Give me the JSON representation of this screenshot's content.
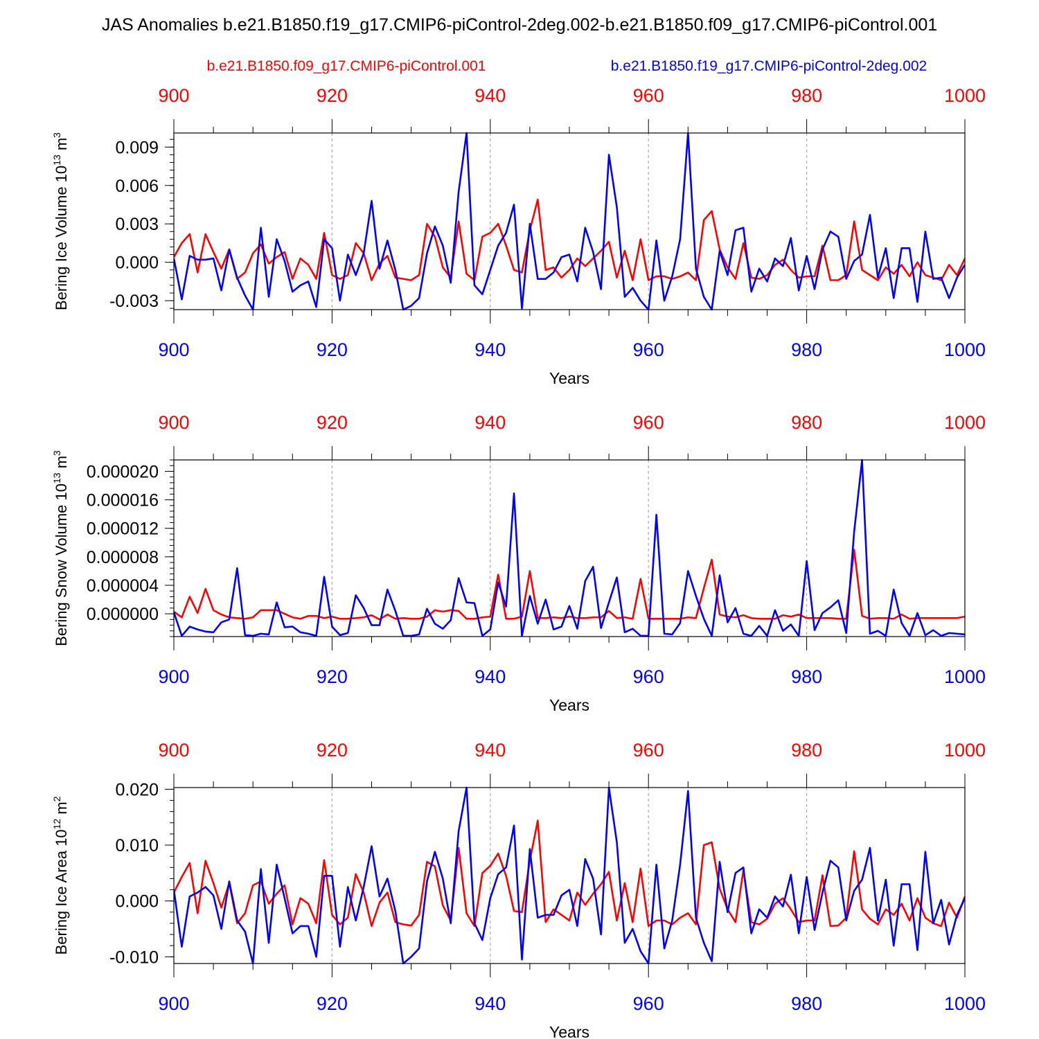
{
  "title": "JAS Anomalies b.e21.B1850.f19_g17.CMIP6-piControl-2deg.002-b.e21.B1850.f09_g17.CMIP6-piControl.001",
  "legend": {
    "red_label": "b.e21.B1850.f09_g17.CMIP6-piControl.001",
    "blue_label": "b.e21.B1850.f19_g17.CMIP6-piControl-2deg.002"
  },
  "colors": {
    "red": "#ff0000",
    "blue": "#0000ff",
    "axis": "#000000",
    "grid": "#999999"
  },
  "chart_data": [
    {
      "type": "line",
      "title": "",
      "xlabel": "Years",
      "ylabel": "Bering Ice Volume",
      "ylabel_unit": "10",
      "ylabel_exp": "13",
      "ylabel_unit2": "m",
      "ylabel_exp2": "3",
      "xlim": [
        900,
        1000
      ],
      "ylim": [
        -0.0037,
        0.0101
      ],
      "xticks": [
        900,
        920,
        940,
        960,
        980,
        1000
      ],
      "xtick_labels_top": [
        "900",
        "920",
        "940",
        "960",
        "980",
        "1000"
      ],
      "xtick_labels_bottom": [
        "900",
        "920",
        "940",
        "960",
        "980",
        "1000"
      ],
      "yticks": [
        -0.003,
        0,
        0.003,
        0.006,
        0.009
      ],
      "ytick_labels": [
        "-0.003",
        "0.000",
        "0.003",
        "0.006",
        "0.009"
      ],
      "grid_x": [
        920,
        940,
        960,
        980
      ],
      "series": [
        {
          "name": "b.e21.B1850.f09_g17.CMIP6-piControl.001",
          "color": "red",
          "x_start": 900,
          "values": [
            0.0004,
            0.0015,
            0.0022,
            -0.0008,
            0.0022,
            0.0008,
            -0.0005,
            0.001,
            -0.0013,
            -0.0008,
            0.0007,
            0.0014,
            -0.0001,
            0.0004,
            0.0008,
            -0.0013,
            0.0003,
            -0.0002,
            -0.0013,
            0.0023,
            -0.001,
            -0.0013,
            -0.001,
            0.0015,
            0.0007,
            -0.0014,
            -0.0001,
            0.0005,
            -0.0012,
            -0.0013,
            -0.0014,
            -0.001,
            0.003,
            0.002,
            -0.0004,
            -0.0012,
            0.0032,
            -0.0009,
            -0.0014,
            0.002,
            0.0023,
            0.003,
            0.0013,
            -0.0006,
            -0.0008,
            0.0025,
            0.0049,
            -0.0006,
            -0.0004,
            -0.0012,
            -0.0006,
            0.0003,
            -0.0003,
            0.0003,
            0.0009,
            0.0016,
            -0.0012,
            0.0009,
            -0.0014,
            0.0018,
            -0.0014,
            -0.0011,
            -0.0011,
            -0.0013,
            -0.0011,
            -0.0008,
            -0.0014,
            0.0033,
            0.004,
            0.001,
            -0.0004,
            -0.0013,
            0.0015,
            -0.0012,
            -0.0013,
            -0.001,
            -0.0002,
            0.0002,
            -0.0006,
            -0.0012,
            -0.0011,
            -0.0011,
            0.0013,
            -0.0014,
            -0.0014,
            -0.001,
            0.0032,
            -0.0006,
            -0.001,
            -0.0014,
            -0.0004,
            -0.0009,
            -0.0002,
            -0.0011,
            0.0,
            -0.001,
            -0.0012,
            -0.0014,
            -0.0002,
            -0.001,
            0.0003
          ]
        },
        {
          "name": "b.e21.B1850.f19_g17.CMIP6-piControl-2deg.002",
          "color": "blue",
          "x_start": 900,
          "values": [
            0.0003,
            -0.0029,
            0.0005,
            0.0002,
            0.0002,
            0.0003,
            -0.0022,
            0.001,
            -0.0012,
            -0.0026,
            -0.0037,
            0.0027,
            -0.0027,
            0.0018,
            0.0001,
            -0.0023,
            -0.0018,
            -0.0015,
            -0.0035,
            0.0018,
            0.0011,
            -0.003,
            0.0006,
            -0.001,
            0.0007,
            0.0048,
            -0.0005,
            0.0017,
            -0.0006,
            -0.0037,
            -0.0034,
            -0.0028,
            0.0007,
            0.0028,
            0.0013,
            -0.0016,
            0.0055,
            0.0101,
            -0.0018,
            -0.0025,
            -0.0006,
            0.0013,
            0.0023,
            0.0045,
            -0.0036,
            0.003,
            -0.0013,
            -0.0013,
            -0.0008,
            0.0004,
            0.0006,
            -0.0015,
            0.0027,
            0.0008,
            -0.0021,
            0.0084,
            0.0043,
            -0.0027,
            -0.002,
            -0.003,
            -0.0037,
            0.0017,
            -0.003,
            -0.0011,
            0.0018,
            0.0101,
            -0.0005,
            -0.0027,
            -0.0037,
            0.0009,
            -0.001,
            0.0025,
            0.0027,
            -0.0023,
            -0.0005,
            -0.0015,
            0.0003,
            -0.0003,
            0.0019,
            -0.0022,
            0.0005,
            -0.0021,
            0.001,
            0.0024,
            0.002,
            -0.0013,
            0.0001,
            0.0006,
            0.0037,
            -0.0012,
            0.0011,
            -0.0028,
            0.0011,
            0.0011,
            -0.0031,
            0.0024,
            -0.0013,
            -0.0012,
            -0.0028,
            -0.0012,
            -0.0002
          ]
        }
      ]
    },
    {
      "type": "line",
      "title": "",
      "xlabel": "Years",
      "ylabel": "Bering Snow Volume",
      "ylabel_unit": "10",
      "ylabel_exp": "13",
      "ylabel_unit2": "m",
      "ylabel_exp2": "3",
      "xlim": [
        900,
        1000
      ],
      "ylim": [
        -3.2e-06,
        2.16e-05
      ],
      "xticks": [
        900,
        920,
        940,
        960,
        980,
        1000
      ],
      "xtick_labels_top": [
        "900",
        "920",
        "940",
        "960",
        "980",
        "1000"
      ],
      "xtick_labels_bottom": [
        "900",
        "920",
        "940",
        "960",
        "980",
        "1000"
      ],
      "yticks": [
        0,
        4e-06,
        8e-06,
        1.2e-05,
        1.6e-05,
        2e-05
      ],
      "ytick_labels": [
        "0.000000",
        "0.000004",
        "0.000008",
        "0.000012",
        "0.000016",
        "0.000020"
      ],
      "grid_x": [
        920,
        940,
        960,
        980
      ],
      "series": [
        {
          "name": "b.e21.B1850.f09_g17.CMIP6-piControl.001",
          "color": "red",
          "x_start": 900,
          "values": [
            3e-07,
            -5e-07,
            2.4e-06,
            1e-07,
            3.5e-06,
            5e-07,
            -1e-07,
            -5e-07,
            -6e-07,
            -7e-07,
            -5e-07,
            5e-07,
            5e-07,
            5e-07,
            0.0,
            -5e-07,
            -7e-07,
            -3e-07,
            -3e-07,
            -6e-07,
            -4e-07,
            -7e-07,
            -7e-07,
            -6e-07,
            -5e-07,
            -2e-07,
            -8e-07,
            -1e-07,
            -7e-07,
            -6e-07,
            -7e-07,
            -7e-07,
            -4e-07,
            5e-07,
            3e-07,
            5e-07,
            4e-07,
            -7e-07,
            -7e-07,
            -5e-07,
            -4e-07,
            5.5e-06,
            -7e-07,
            -7e-07,
            -4e-07,
            6e-06,
            -6e-07,
            -6e-07,
            -5e-07,
            -6e-07,
            -4e-07,
            -6e-07,
            -6e-07,
            -5e-07,
            -5e-07,
            4e-07,
            -6e-07,
            -5e-07,
            -7e-07,
            4.9e-06,
            -7e-07,
            -7e-07,
            -7e-07,
            -7e-07,
            -7e-07,
            -5e-07,
            -6e-07,
            3.6e-06,
            7.6e-06,
            -1e-07,
            -4e-07,
            -5e-07,
            -2e-07,
            -6e-07,
            -7e-07,
            -7e-07,
            -7e-07,
            -2e-07,
            -4e-07,
            -1e-07,
            -6e-07,
            -6e-07,
            -6e-07,
            -6e-07,
            -7e-07,
            -7e-07,
            9e-06,
            -3e-07,
            -7e-07,
            -6e-07,
            -6e-07,
            -7e-07,
            -1e-07,
            -7e-07,
            -6e-07,
            -6e-07,
            -6e-07,
            -6e-07,
            -6e-07,
            -6e-07,
            -4e-07
          ]
        },
        {
          "name": "b.e21.B1850.f19_g17.CMIP6-piControl-2deg.002",
          "color": "blue",
          "x_start": 900,
          "values": [
            2e-07,
            -3.1e-06,
            -1.8e-06,
            -2.2e-06,
            -2.5e-06,
            -2.6e-06,
            -1.2e-06,
            -8e-07,
            6.4e-06,
            -3e-06,
            -3.1e-06,
            -2.8e-06,
            -2.9e-06,
            1.6e-06,
            -1.9e-06,
            -1.8e-06,
            -2.6e-06,
            -2.8e-06,
            -3.1e-06,
            5.2e-06,
            -1.8e-06,
            -3e-06,
            -2.7e-06,
            2.6e-06,
            8e-07,
            -1.6e-06,
            -1.6e-06,
            3.4e-06,
            4e-07,
            -3.1e-06,
            -3.1e-06,
            -2.9e-06,
            7e-07,
            -1.4e-06,
            -2.1e-06,
            -9e-07,
            5e-06,
            1.6e-06,
            1.5e-06,
            -3.1e-06,
            -2.2e-06,
            4.4e-06,
            1e-06,
            1.69e-05,
            -3.1e-06,
            2.5e-06,
            -1.4e-06,
            2e-06,
            -2.2e-06,
            -1.8e-06,
            1.1e-06,
            -2.1e-06,
            4.6e-06,
            6.6e-06,
            -2e-06,
            1.6e-06,
            5.1e-06,
            -2.6e-06,
            -2.1e-06,
            -3.1e-06,
            -3.1e-06,
            1.39e-05,
            -2.8e-06,
            -2.9e-06,
            -1.3e-06,
            6e-06,
            2.5e-06,
            -7e-07,
            -3.1e-06,
            5.4e-06,
            -1.2e-06,
            8e-07,
            -2.8e-06,
            -3.1e-06,
            -1.7e-06,
            -3.1e-06,
            5e-07,
            -2.4e-06,
            -1.5e-06,
            -3.1e-06,
            7.4e-06,
            -2.3e-06,
            1e-07,
            9e-07,
            1.9e-06,
            -2.7e-06,
            1.15e-05,
            2.16e-05,
            -2.8e-06,
            -2.4e-06,
            -3.1e-06,
            3.4e-06,
            -1.3e-06,
            -3.1e-06,
            1e-07,
            -3e-06,
            -2.3e-06,
            -3.1e-06,
            -2.7e-06,
            -2.8e-06,
            -2.9e-06
          ]
        }
      ]
    },
    {
      "type": "line",
      "title": "",
      "xlabel": "Years",
      "ylabel": "Bering Ice Area",
      "ylabel_unit": "10",
      "ylabel_exp": "12",
      "ylabel_unit2": "m",
      "ylabel_exp2": "2",
      "xlim": [
        900,
        1000
      ],
      "ylim": [
        -0.0112,
        0.0203
      ],
      "xticks": [
        900,
        920,
        940,
        960,
        980,
        1000
      ],
      "xtick_labels_top": [
        "900",
        "920",
        "940",
        "960",
        "980",
        "1000"
      ],
      "xtick_labels_bottom": [
        "900",
        "920",
        "940",
        "960",
        "980",
        "1000"
      ],
      "yticks": [
        -0.01,
        0,
        0.01,
        0.02
      ],
      "ytick_labels": [
        "-0.010",
        "0.000",
        "0.010",
        "0.020"
      ],
      "grid_x": [
        920,
        940,
        960,
        980
      ],
      "series": [
        {
          "name": "b.e21.B1850.f09_g17.CMIP6-piControl.001",
          "color": "red",
          "x_start": 900,
          "values": [
            0.0015,
            0.0043,
            0.0068,
            -0.0022,
            0.0072,
            0.0032,
            -0.0012,
            0.0032,
            -0.004,
            -0.0022,
            0.0028,
            0.0035,
            -0.0005,
            0.0013,
            0.0028,
            -0.0042,
            0.0005,
            -0.0005,
            -0.004,
            0.0073,
            -0.0025,
            -0.0042,
            -0.003,
            0.0048,
            0.0015,
            -0.0045,
            -0.0003,
            0.0015,
            -0.0038,
            -0.0042,
            -0.0044,
            -0.0025,
            0.007,
            0.0062,
            -0.0008,
            -0.0035,
            0.0095,
            -0.0022,
            -0.0045,
            0.005,
            0.0063,
            0.0085,
            0.0045,
            -0.0018,
            -0.002,
            0.0072,
            0.0144,
            -0.0038,
            -0.0015,
            -0.0025,
            -0.0035,
            0.0015,
            -0.0007,
            0.0013,
            0.003,
            0.0052,
            -0.0035,
            0.0032,
            -0.0038,
            0.0058,
            -0.0045,
            -0.0035,
            -0.0035,
            -0.0042,
            -0.003,
            -0.0022,
            -0.0042,
            0.01,
            0.0105,
            0.0022,
            -0.0015,
            -0.0038,
            0.0055,
            -0.0038,
            -0.0042,
            -0.0032,
            -0.0005,
            0.0005,
            -0.0015,
            -0.0038,
            -0.0035,
            -0.0035,
            0.0046,
            -0.0045,
            -0.0044,
            -0.003,
            0.0089,
            -0.0015,
            -0.0032,
            -0.0042,
            -0.0015,
            -0.0025,
            -0.0005,
            -0.0035,
            0.0005,
            -0.003,
            -0.004,
            -0.0045,
            -0.0003,
            -0.003,
            0.0008
          ]
        },
        {
          "name": "b.e21.B1850.f19_g17.CMIP6-piControl-2deg.002",
          "color": "blue",
          "x_start": 900,
          "values": [
            0.002,
            -0.0082,
            0.0008,
            0.0015,
            0.0025,
            0.001,
            -0.005,
            0.0035,
            -0.0035,
            -0.0055,
            -0.0112,
            0.0057,
            -0.0075,
            0.0065,
            0.0005,
            -0.0058,
            -0.0045,
            -0.0045,
            -0.01,
            0.0045,
            0.0045,
            -0.0082,
            0.0025,
            -0.0035,
            0.0025,
            0.0098,
            0.0008,
            0.004,
            -0.0018,
            -0.0112,
            -0.01,
            -0.0085,
            0.0035,
            0.0088,
            0.004,
            -0.004,
            0.0125,
            0.0203,
            -0.004,
            -0.007,
            0.0005,
            0.0048,
            0.006,
            0.0135,
            -0.0105,
            0.0093,
            -0.003,
            -0.0025,
            -0.0025,
            0.001,
            0.002,
            -0.0045,
            0.0075,
            0.004,
            -0.006,
            0.0203,
            0.0105,
            -0.0075,
            -0.005,
            -0.009,
            -0.0112,
            0.0065,
            -0.0085,
            -0.0035,
            0.0065,
            0.0197,
            -0.003,
            -0.0075,
            -0.0108,
            0.007,
            -0.002,
            0.005,
            0.006,
            -0.0058,
            -0.0015,
            -0.003,
            0.0008,
            -0.001,
            0.0047,
            -0.0058,
            0.0043,
            -0.0052,
            0.0015,
            0.0072,
            0.006,
            -0.0035,
            0.0018,
            0.0038,
            0.0095,
            -0.0035,
            0.0038,
            -0.008,
            0.003,
            0.003,
            -0.0088,
            0.0088,
            -0.004,
            0.0002,
            -0.0078,
            -0.0025,
            0.0005
          ]
        }
      ]
    }
  ]
}
